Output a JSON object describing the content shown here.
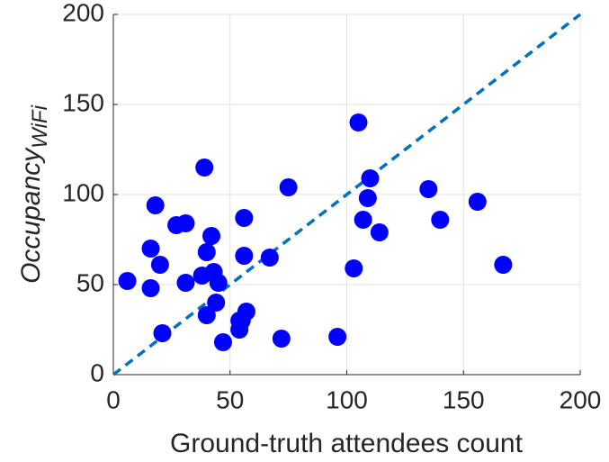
{
  "chart_data": {
    "type": "scatter",
    "x_label": "Ground-truth attendees count",
    "y_label": "Occupancy",
    "y_label_subscript": "WiFi",
    "x": [
      6,
      16,
      16,
      18,
      20,
      21,
      27,
      31,
      31,
      39,
      38,
      40,
      40,
      42,
      43,
      44,
      45,
      47,
      54,
      54,
      56,
      56,
      55,
      57,
      67,
      72,
      75,
      96,
      103,
      105,
      107,
      109,
      110,
      114,
      135,
      140,
      156,
      167
    ],
    "values": [
      52,
      70,
      48,
      94,
      61,
      23,
      83,
      84,
      51,
      115,
      55,
      68,
      33,
      77,
      57,
      40,
      51,
      18,
      30,
      25,
      87,
      66,
      30,
      35,
      65,
      20,
      104,
      21,
      59,
      140,
      86,
      98,
      109,
      79,
      103,
      86,
      96,
      61
    ],
    "color": "#0000ff",
    "identity_line": true,
    "identity_line_color": "#0072bd",
    "xlim": [
      0,
      200
    ],
    "ylim": [
      0,
      200
    ],
    "xticks": [
      0,
      50,
      100,
      150,
      200
    ],
    "yticks": [
      0,
      50,
      100,
      150,
      200
    ],
    "grid": true
  }
}
